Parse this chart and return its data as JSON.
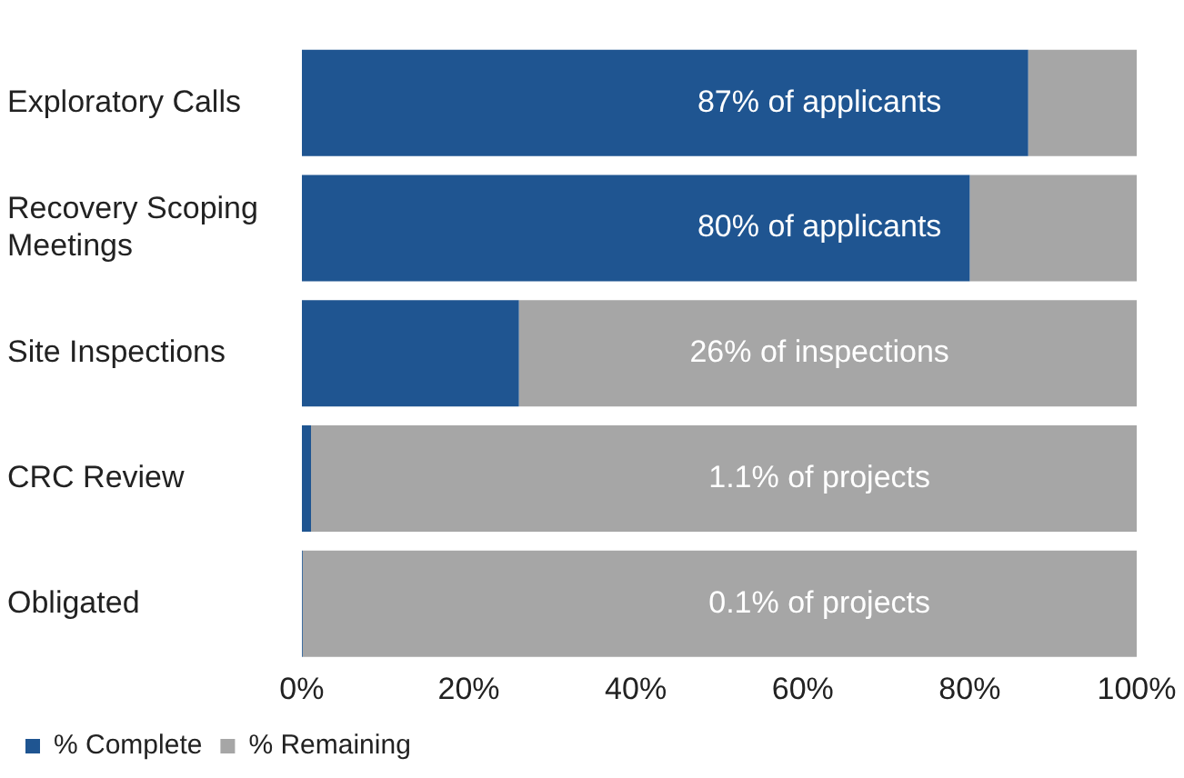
{
  "chart_data": {
    "type": "bar",
    "orientation": "horizontal",
    "stacked": true,
    "categories": [
      "Exploratory Calls",
      "Recovery Scoping Meetings",
      "Site Inspections",
      "CRC Review",
      "Obligated"
    ],
    "series": [
      {
        "name": "% Complete",
        "color": "#1f5591",
        "values": [
          87,
          80,
          26,
          1.1,
          0.1
        ]
      },
      {
        "name": "% Remaining",
        "color": "#a6a6a6",
        "values": [
          13,
          20,
          74,
          98.9,
          99.9
        ]
      }
    ],
    "xlim": [
      0,
      100
    ],
    "xticks": [
      {
        "value": 0,
        "label": "0%"
      },
      {
        "value": 20,
        "label": "20%"
      },
      {
        "value": 40,
        "label": "40%"
      },
      {
        "value": 60,
        "label": "60%"
      },
      {
        "value": 80,
        "label": "80%"
      },
      {
        "value": 100,
        "label": "100%"
      }
    ],
    "grid": false,
    "legend": "bottom left",
    "annotations": [
      "87% of applicants",
      "80% of applicants",
      "26% of inspections",
      "1.1% of projects",
      "0.1% of projects"
    ]
  }
}
